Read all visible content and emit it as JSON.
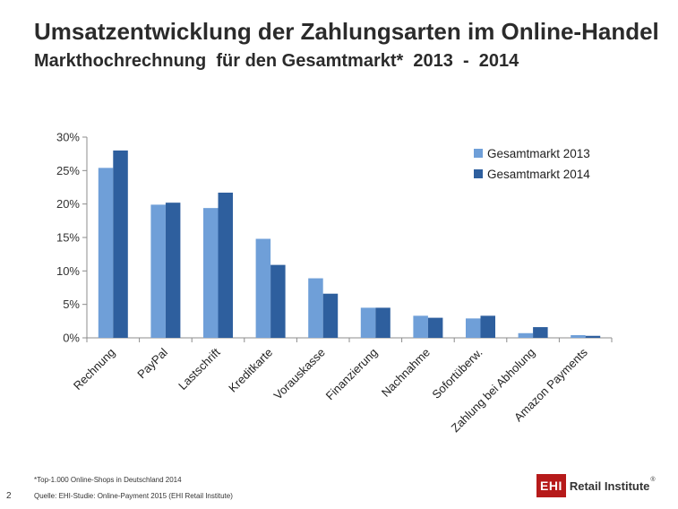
{
  "header": {
    "title": "Umsatzentwicklung der Zahlungsarten im Online-Handel",
    "subtitle": "Markthochrechnung  für den Gesamtmarkt*  2013  -  2014"
  },
  "footer": {
    "footnote": "*Top-1.000 Online-Shops in Deutschland 2014",
    "source": "Quelle: EHI-Studie: Online-Payment 2015 (EHI Retail Institute)",
    "page_number": "2",
    "logo_mark": "EHI",
    "logo_text": "Retail Institute",
    "logo_registered": "®"
  },
  "colors": {
    "series_2013": "#6f9fd8",
    "series_2014": "#2e5f9e",
    "axis": "#8c8c8c"
  },
  "chart_data": {
    "type": "bar",
    "categories": [
      "Rechnung",
      "PayPal",
      "Lastschrift",
      "Kreditkarte",
      "Vorauskasse",
      "Finanzierung",
      "Nachnahme",
      "Sofortüberw.",
      "Zahlung bei Abholung",
      "Amazon Payments"
    ],
    "series": [
      {
        "name": "Gesamtmarkt 2013",
        "values": [
          25.4,
          19.9,
          19.4,
          14.8,
          8.9,
          4.5,
          3.3,
          2.9,
          0.7,
          0.4
        ]
      },
      {
        "name": "Gesamtmarkt 2014",
        "values": [
          28.0,
          20.2,
          21.7,
          10.9,
          6.6,
          4.5,
          3.0,
          3.3,
          1.6,
          0.3
        ]
      }
    ],
    "y_ticks": [
      "0%",
      "5%",
      "10%",
      "15%",
      "20%",
      "25%",
      "30%"
    ],
    "ylim": [
      0,
      30
    ],
    "legend_position": "top-right",
    "grid": false
  }
}
